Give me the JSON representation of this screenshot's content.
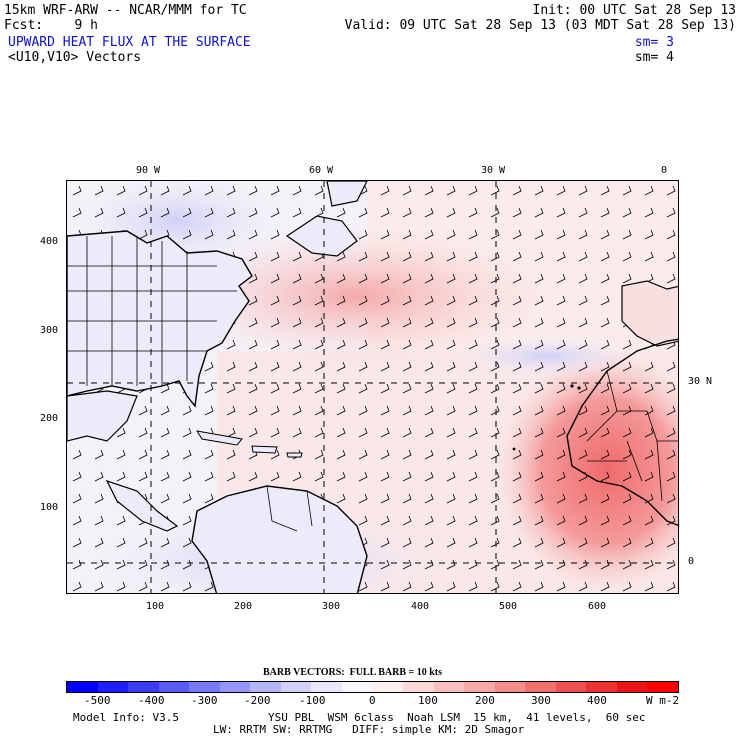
{
  "header": {
    "line1_left": "15km WRF-ARW -- NCAR/MMM for TC",
    "line1_right": "Init: 00 UTC Sat 28 Sep 13",
    "line2_left": "Fcst:    9 h",
    "line2_right": "Valid: 09 UTC Sat 28 Sep 13 (03 MDT Sat 28 Sep 13)",
    "field_title": "UPWARD HEAT FLUX AT THE SURFACE",
    "field_sm": "sm= 3",
    "vector_title": "<U10,V10> Vectors",
    "vector_sm": "sm= 4"
  },
  "map": {
    "top_lon_labels": [
      "90 W",
      "60 W",
      "30 W",
      "0"
    ],
    "right_lat_labels": [
      "30 N",
      "0"
    ],
    "left_y_ticks": [
      "400",
      "300",
      "200",
      "100"
    ],
    "bottom_x_ticks": [
      "100",
      "200",
      "300",
      "400",
      "500",
      "600"
    ],
    "palette": {
      "neg_strong": "#c8c8f8",
      "neutral": "#f4f2f8",
      "pos_mild": "#fbd4d4",
      "pos_strong": "#f06a6a"
    }
  },
  "legend": {
    "barb_title": "BARB VECTORS:  FULL BARB = 10 kts",
    "levels": [
      "-500",
      "-400",
      "-300",
      "-200",
      "-100",
      "0",
      "100",
      "200",
      "300",
      "400"
    ],
    "units": "W m-2",
    "colors": [
      "#0000ff",
      "#2020ff",
      "#3c3cf8",
      "#5a5af8",
      "#7878f8",
      "#9696f8",
      "#b4b4f8",
      "#d0d0f8",
      "#e8e8fa",
      "#f8f8ff",
      "#fff0f0",
      "#fcd8d8",
      "#fac0c0",
      "#f8a8a8",
      "#f48c8c",
      "#f27070",
      "#f05050",
      "#ee3232",
      "#ec1414",
      "#ff0000"
    ]
  },
  "footer": {
    "model_info": "Model Info: V3.5",
    "physics1": "YSU PBL  WSM 6class  Noah LSM  15 km,  41 levels,  60 sec",
    "physics2": "LW: RRTM SW: RRTMG   DIFF: simple KM: 2D Smagor"
  }
}
